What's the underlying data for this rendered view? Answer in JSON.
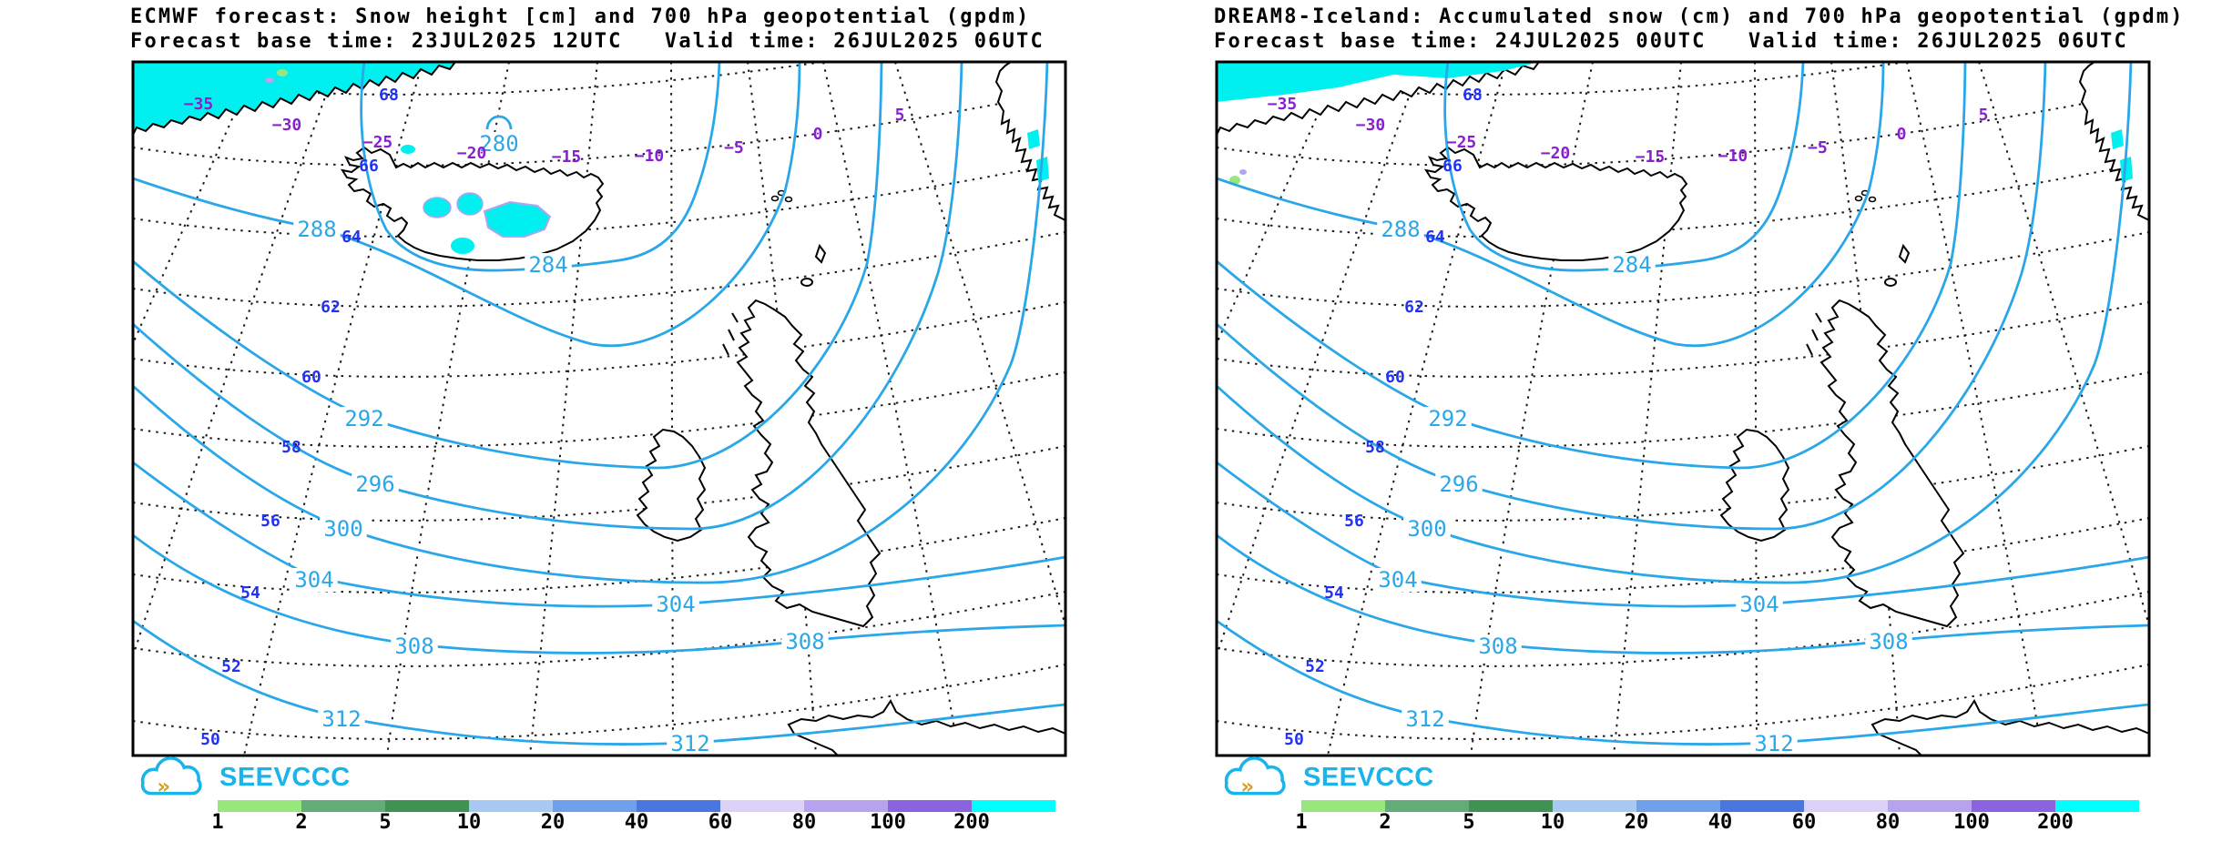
{
  "panels": [
    {
      "model": "ECMWF",
      "title_line1": "ECMWF forecast: Snow height [cm] and 700 hPa geopotential (gpdm)",
      "title_line2": "Forecast base time: 23JUL2025 12UTC   Valid time: 26JUL2025 06UTC",
      "contour_labels": [
        "280",
        "284",
        "288",
        "292",
        "296",
        "300",
        "304",
        "304",
        "308",
        "308",
        "312",
        "312"
      ],
      "latitude_labels": [
        "68",
        "66",
        "64",
        "62",
        "60",
        "58",
        "56",
        "54",
        "52",
        "50"
      ],
      "longitude_labels": [
        "−35",
        "−30",
        "−25",
        "−20",
        "−15",
        "−10",
        "−5",
        "0",
        "5"
      ],
      "iceland_snow_shown": true
    },
    {
      "model": "DREAM8-Iceland",
      "title_line1": "DREAM8-Iceland: Accumulated snow (cm) and 700 hPa geopotential (gpdm)",
      "title_line2": "Forecast base time: 24JUL2025 00UTC   Valid time: 26JUL2025 06UTC",
      "contour_labels": [
        "284",
        "288",
        "292",
        "296",
        "300",
        "304",
        "304",
        "308",
        "308",
        "312",
        "312"
      ],
      "latitude_labels": [
        "68",
        "66",
        "64",
        "62",
        "60",
        "58",
        "56",
        "54",
        "52",
        "50"
      ],
      "longitude_labels": [
        "−35",
        "−30",
        "−25",
        "−20",
        "−15",
        "−10",
        "−5",
        "0",
        "5"
      ],
      "iceland_snow_shown": false
    }
  ],
  "colorbar": {
    "tick_labels": [
      "1",
      "2",
      "5",
      "10",
      "20",
      "40",
      "60",
      "80",
      "100",
      "200"
    ],
    "segment_colors": [
      "#97e77c",
      "#63ab79",
      "#3f9154",
      "#a8c9f4",
      "#6fa0eb",
      "#4a76e0",
      "#dcd2f7",
      "#b6a2ee",
      "#8a64e0",
      "#00ffff"
    ]
  },
  "logo": {
    "text": "SEEVCCC"
  },
  "colors": {
    "contour_blue": "#2aa7e8",
    "latitude_label_blue": "#2233f0",
    "longitude_label_purple": "#8a1fd0",
    "snow_cyan": "#00f0f0",
    "snow_fringe_lavender": "#b6a2ee",
    "snow_fringe_green": "#97e77c",
    "coast_black": "#000000",
    "graticule_black": "#1a1a1a",
    "logo_cyan": "#19b5ea",
    "logo_gold": "#d7a021"
  }
}
